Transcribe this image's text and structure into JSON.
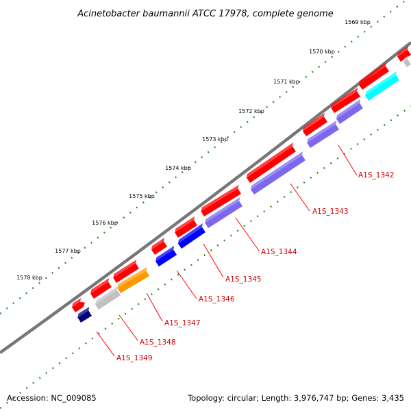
{
  "title": "Acinetobacter baumannii ATCC 17978, complete genome",
  "footer": {
    "accession": "Accession: NC_009085",
    "summary": "Topology: circular; Length: 3,976,747 bp; Genes: 3,435"
  },
  "colors": {
    "backbone": "#777777",
    "tick": "#2a8a2a",
    "label": "#cc0000",
    "leader": "#ff0000",
    "red": "#ff0000",
    "slate": "#7b68ee",
    "blue": "#0000ff",
    "navy": "#00007f",
    "orange": "#ff9900",
    "gray": "#c0c0c0",
    "cyan": "#00ffff"
  },
  "tick_labels": [
    "1569 kbp",
    "1570 kbp",
    "1571 kbp",
    "1572 kbp",
    "1573 kbp",
    "1574 kbp",
    "1575 kbp",
    "1576 kbp",
    "1577 kbp",
    "1578 kbp"
  ],
  "gene_labels": [
    "A1S_1342",
    "A1S_1343",
    "A1S_1344",
    "A1S_1345",
    "A1S_1346",
    "A1S_1347",
    "A1S_1348",
    "A1S_1349"
  ]
}
